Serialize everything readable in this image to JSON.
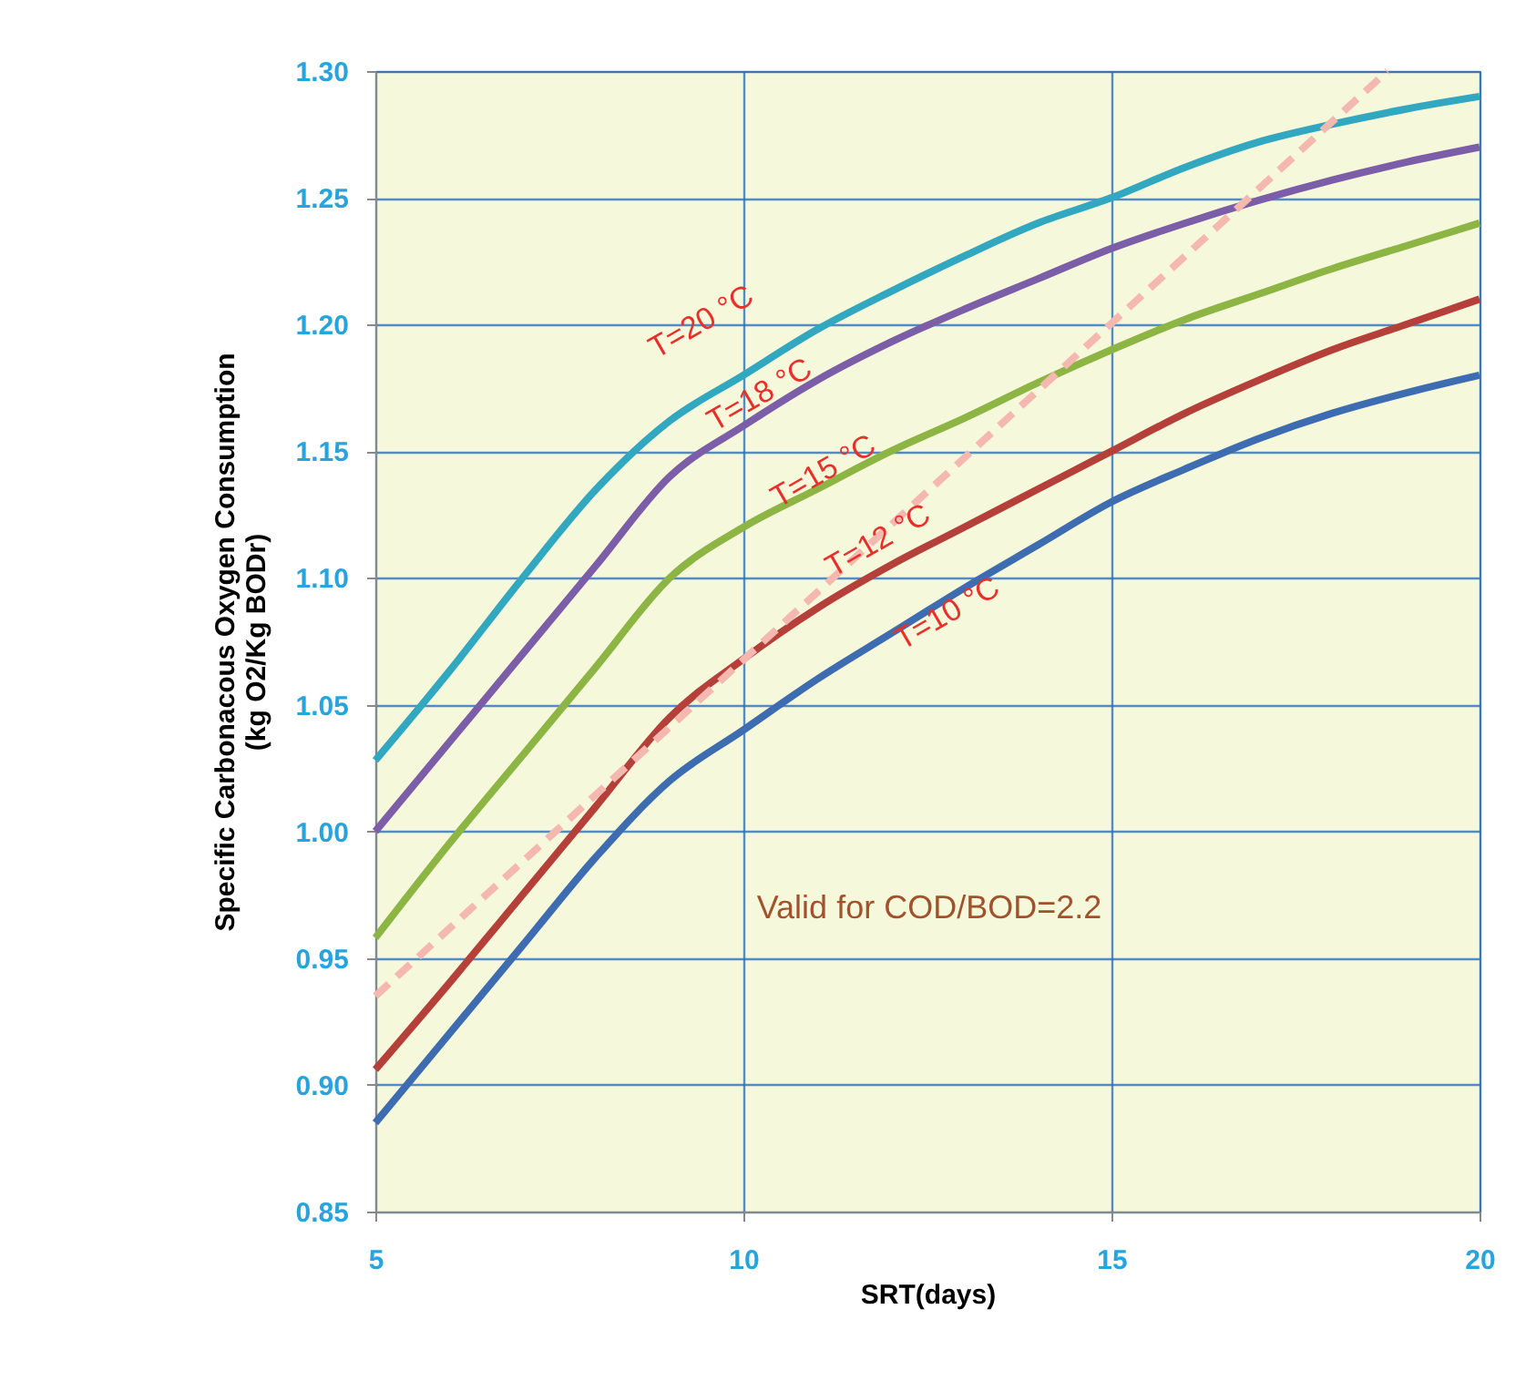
{
  "chart_data": {
    "type": "line",
    "xlabel": "SRT(days)",
    "ylabel": "Specific Carbonacous  Oxygen Consumption\n(kg O2/Kg BODr)",
    "x": [
      5,
      6,
      7,
      8,
      9,
      10,
      11,
      12,
      13,
      14,
      15,
      16,
      17,
      18,
      19,
      20
    ],
    "series": [
      {
        "color": "#31a7c0",
        "values": [
          1.028,
          1.063,
          1.1,
          1.135,
          1.162,
          1.18,
          1.198,
          1.213,
          1.227,
          1.24,
          1.25,
          1.262,
          1.272,
          1.279,
          1.285,
          1.29
        ]
      },
      {
        "color": "#7b5ea7",
        "values": [
          1.0,
          1.035,
          1.07,
          1.105,
          1.14,
          1.16,
          1.178,
          1.193,
          1.206,
          1.218,
          1.23,
          1.24,
          1.249,
          1.257,
          1.264,
          1.27
        ]
      },
      {
        "color": "#8db543",
        "values": [
          0.958,
          0.995,
          1.03,
          1.065,
          1.1,
          1.12,
          1.135,
          1.15,
          1.163,
          1.177,
          1.19,
          1.202,
          1.212,
          1.222,
          1.231,
          1.24
        ]
      },
      {
        "color": "#b5403a",
        "values": [
          0.906,
          0.94,
          0.975,
          1.01,
          1.045,
          1.068,
          1.088,
          1.105,
          1.12,
          1.135,
          1.15,
          1.165,
          1.178,
          1.19,
          1.2,
          1.21
        ]
      },
      {
        "color": "#3e6cb0",
        "values": [
          0.885,
          0.92,
          0.955,
          0.99,
          1.02,
          1.04,
          1.06,
          1.078,
          1.096,
          1.113,
          1.13,
          1.143,
          1.155,
          1.165,
          1.173,
          1.18
        ]
      },
      {
        "color": "#f4b8b0",
        "line_style": "dashed",
        "x": [
          5,
          18.75
        ],
        "values": [
          0.935,
          1.3
        ]
      }
    ],
    "xlim": [
      5,
      20
    ],
    "xticks": [
      5,
      10,
      15,
      20
    ],
    "ylim": [
      0.85,
      1.3
    ],
    "yticks": [
      0.85,
      {
        "value": 0.9,
        "label": "0.90"
      },
      0.95,
      {
        "value": 1.0,
        "label": "1.00"
      },
      1.05,
      {
        "value": 1.1,
        "label": "1.10"
      },
      1.15,
      {
        "value": 1.2,
        "label": "1.20"
      },
      1.25,
      {
        "value": 1.3,
        "label": "1.30"
      }
    ],
    "grid": true,
    "marker": "none",
    "line_style": "solid",
    "annotations": [
      "T=20 °C",
      "T=18 °C",
      "T=15 °C",
      "T=12 °C",
      "T=10 °C",
      "Valid for COD/BOD=2.2"
    ]
  }
}
